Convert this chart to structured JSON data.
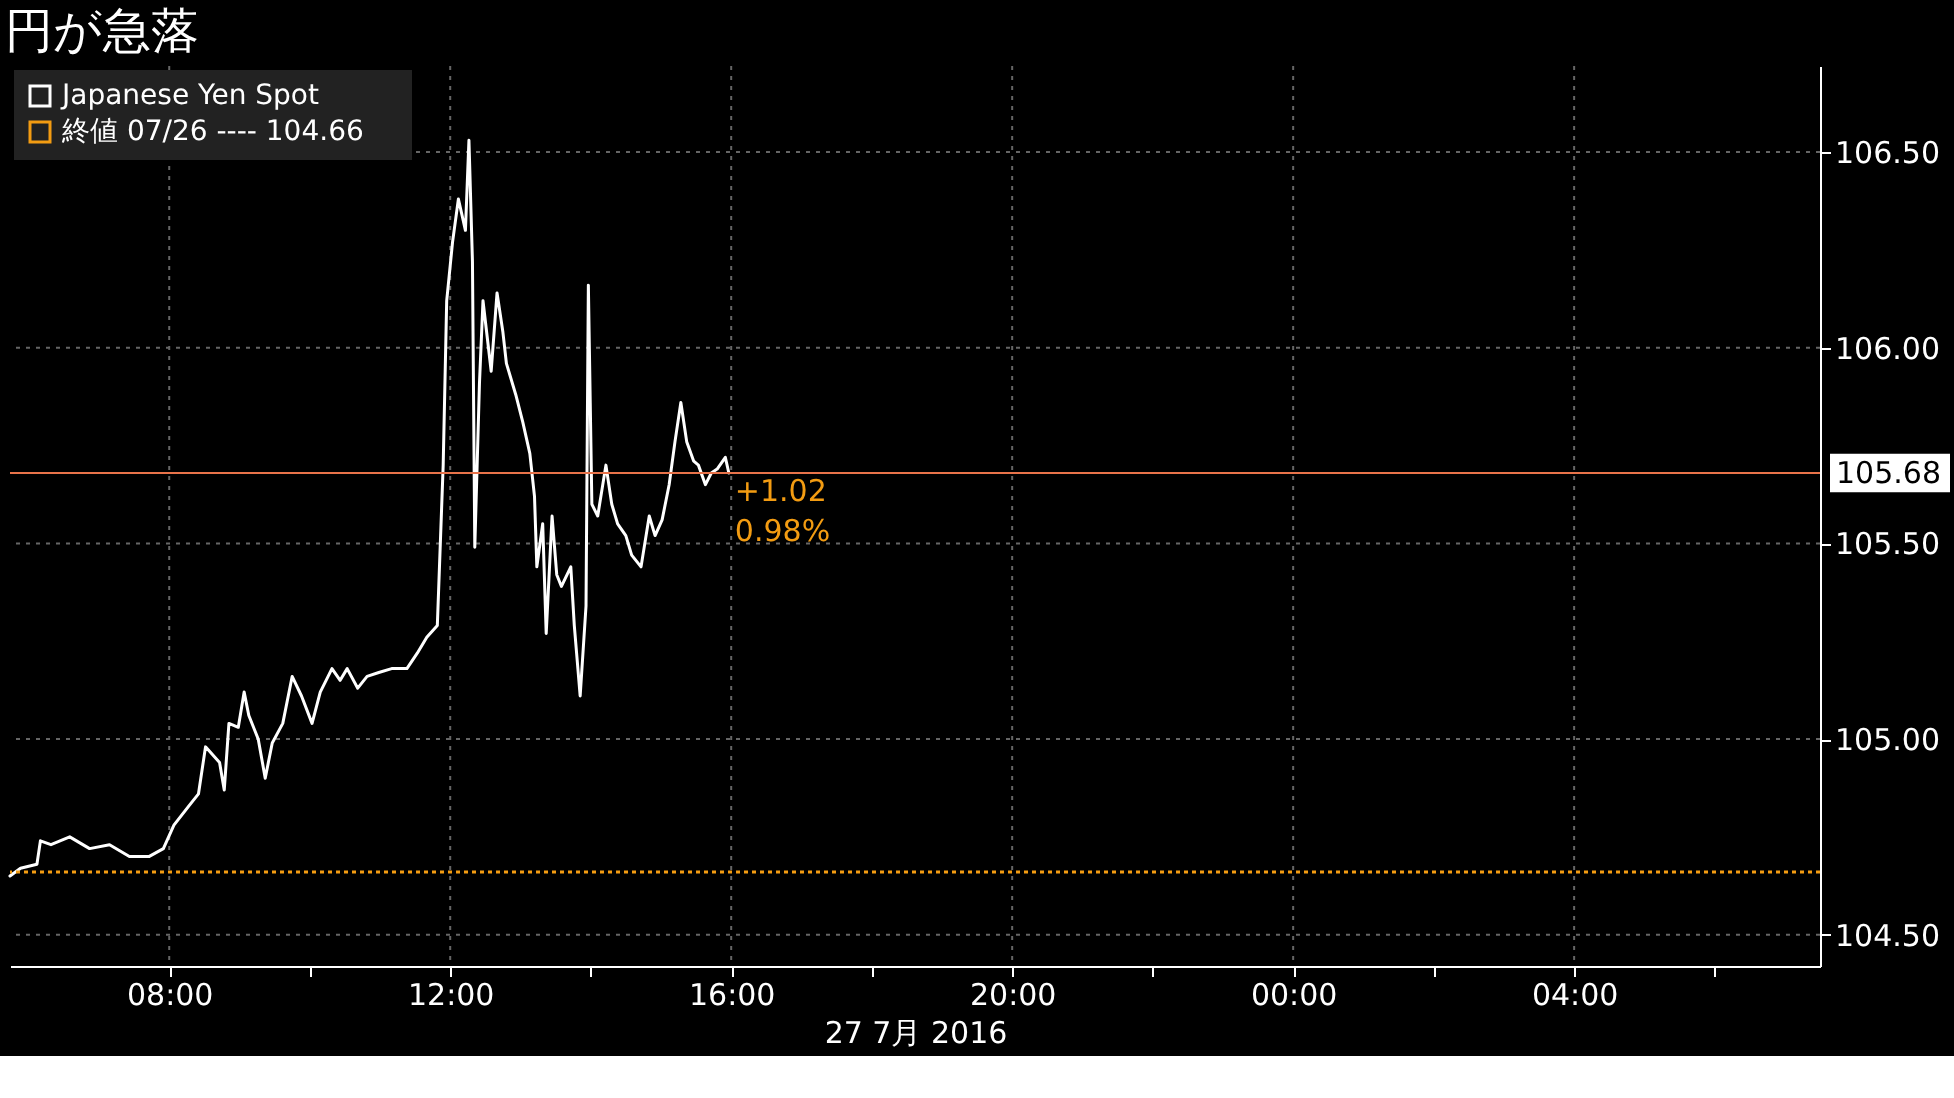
{
  "chart_data": {
    "type": "line",
    "title": "円が急落",
    "xlabel": "27 7月 2016",
    "x": [
      "2016-07-27T05:44",
      "2016-07-27T05:53",
      "2016-07-27T06:07",
      "2016-07-27T06:10",
      "2016-07-27T06:19",
      "2016-07-27T06:35",
      "2016-07-27T06:52",
      "2016-07-27T07:09",
      "2016-07-27T07:26",
      "2016-07-27T07:43",
      "2016-07-27T07:55",
      "2016-07-27T08:04",
      "2016-07-27T08:17",
      "2016-07-27T08:25",
      "2016-07-27T08:31",
      "2016-07-27T08:43",
      "2016-07-27T08:47",
      "2016-07-27T08:51",
      "2016-07-27T08:59",
      "2016-07-27T09:04",
      "2016-07-27T09:08",
      "2016-07-27T09:16",
      "2016-07-27T09:22",
      "2016-07-27T09:28",
      "2016-07-27T09:37",
      "2016-07-27T09:45",
      "2016-07-27T09:53",
      "2016-07-27T10:02",
      "2016-07-27T10:09",
      "2016-07-27T10:19",
      "2016-07-27T10:26",
      "2016-07-27T10:32",
      "2016-07-27T10:41",
      "2016-07-27T10:49",
      "2016-07-27T10:59",
      "2016-07-27T11:10",
      "2016-07-27T11:23",
      "2016-07-27T11:32",
      "2016-07-27T11:40",
      "2016-07-27T11:49",
      "2016-07-27T11:54",
      "2016-07-27T11:57",
      "2016-07-27T12:02",
      "2016-07-27T12:07",
      "2016-07-27T12:13",
      "2016-07-27T12:16",
      "2016-07-27T12:19",
      "2016-07-27T12:21",
      "2016-07-27T12:25",
      "2016-07-27T12:28",
      "2016-07-27T12:35",
      "2016-07-27T12:40",
      "2016-07-27T12:45",
      "2016-07-27T12:48",
      "2016-07-27T12:56",
      "2016-07-27T13:02",
      "2016-07-27T13:08",
      "2016-07-27T13:12",
      "2016-07-27T13:14",
      "2016-07-27T13:19",
      "2016-07-27T13:22",
      "2016-07-27T13:27",
      "2016-07-27T13:31",
      "2016-07-27T13:35",
      "2016-07-27T13:43",
      "2016-07-27T13:46",
      "2016-07-27T13:51",
      "2016-07-27T13:56",
      "2016-07-27T13:58",
      "2016-07-27T14:01",
      "2016-07-27T14:06",
      "2016-07-27T14:13",
      "2016-07-27T14:18",
      "2016-07-27T14:23",
      "2016-07-27T14:30",
      "2016-07-27T14:35",
      "2016-07-27T14:43",
      "2016-07-27T14:50",
      "2016-07-27T14:55",
      "2016-07-27T15:01",
      "2016-07-27T15:07",
      "2016-07-27T15:12",
      "2016-07-27T15:17",
      "2016-07-27T15:22",
      "2016-07-27T15:28",
      "2016-07-27T15:32",
      "2016-07-27T15:38",
      "2016-07-27T15:43",
      "2016-07-27T15:48",
      "2016-07-27T15:55",
      "2016-07-27T15:58"
    ],
    "series": [
      {
        "name": "Japanese Yen Spot",
        "color": "#ffffff",
        "values": [
          104.65,
          104.67,
          104.68,
          104.74,
          104.73,
          104.75,
          104.72,
          104.73,
          104.7,
          104.7,
          104.72,
          104.78,
          104.83,
          104.86,
          104.98,
          104.94,
          104.87,
          105.04,
          105.03,
          105.12,
          105.06,
          105.0,
          104.9,
          104.99,
          105.04,
          105.16,
          105.11,
          105.04,
          105.12,
          105.18,
          105.15,
          105.18,
          105.13,
          105.16,
          105.17,
          105.18,
          105.18,
          105.22,
          105.26,
          105.29,
          105.7,
          106.12,
          106.27,
          106.38,
          106.3,
          106.53,
          106.22,
          105.49,
          105.91,
          106.12,
          105.94,
          106.14,
          106.04,
          105.96,
          105.88,
          105.81,
          105.73,
          105.62,
          105.44,
          105.55,
          105.27,
          105.57,
          105.42,
          105.39,
          105.44,
          105.29,
          105.11,
          105.34,
          106.16,
          105.6,
          105.57,
          105.7,
          105.6,
          105.55,
          105.52,
          105.47,
          105.44,
          105.57,
          105.52,
          105.56,
          105.65,
          105.76,
          105.86,
          105.76,
          105.71,
          105.7,
          105.65,
          105.68,
          105.69,
          105.72,
          105.68
        ]
      }
    ],
    "xlim": [
      "2016-07-27T05:44",
      "2016-07-28T07:30"
    ],
    "ylim": [
      104.42,
      106.72
    ],
    "xticks": [
      {
        "value": "2016-07-27T08:00",
        "label": "08:00"
      },
      {
        "value": "2016-07-27T10:00",
        "label": null
      },
      {
        "value": "2016-07-27T12:00",
        "label": "12:00"
      },
      {
        "value": "2016-07-27T14:00",
        "label": null
      },
      {
        "value": "2016-07-27T16:00",
        "label": "16:00"
      },
      {
        "value": "2016-07-27T18:00",
        "label": null
      },
      {
        "value": "2016-07-27T20:00",
        "label": "20:00"
      },
      {
        "value": "2016-07-27T22:00",
        "label": null
      },
      {
        "value": "2016-07-28T00:00",
        "label": "00:00"
      },
      {
        "value": "2016-07-28T02:00",
        "label": null
      },
      {
        "value": "2016-07-28T04:00",
        "label": "04:00"
      },
      {
        "value": "2016-07-28T06:00",
        "label": null
      }
    ],
    "yticks": [
      {
        "value": 104.5,
        "label": "104.50"
      },
      {
        "value": 105,
        "label": "105.00"
      },
      {
        "value": 105.5,
        "label": "105.50"
      },
      {
        "value": 106,
        "label": "106.00"
      },
      {
        "value": 106.5,
        "label": "106.50"
      }
    ],
    "ref_lines": [
      {
        "axis": "y",
        "value": 104.66,
        "label": "終値 07/26 ----     104.66",
        "color": "#f39c12",
        "line_style": "dotted"
      },
      {
        "axis": "y",
        "value": 105.68,
        "label": "105.68",
        "color": "#e8734a",
        "line_style": "solid"
      }
    ],
    "annotations": [
      "+1.02",
      "0.98%"
    ],
    "grid": true,
    "legend": "top left",
    "marker": "none",
    "line_style": "solid"
  }
}
